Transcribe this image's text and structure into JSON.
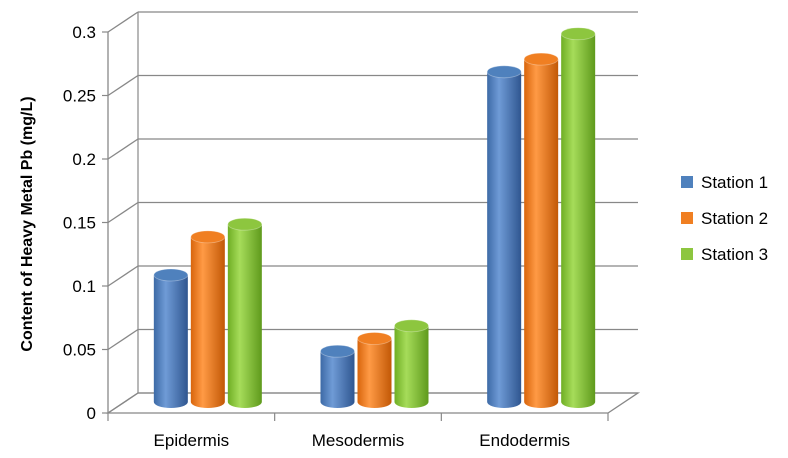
{
  "chart_data": {
    "type": "bar",
    "title": "",
    "xlabel": "",
    "ylabel": "Content of Heavy Metal Pb (mg/L)",
    "categories": [
      "Epidermis",
      "Mesodermis",
      "Endodermis"
    ],
    "series": [
      {
        "name": "Station 1",
        "values": [
          0.1,
          0.04,
          0.26
        ],
        "color": "#4f81bd"
      },
      {
        "name": "Station 2",
        "values": [
          0.13,
          0.05,
          0.27
        ],
        "color": "#f07f22"
      },
      {
        "name": "Station 3",
        "values": [
          0.14,
          0.06,
          0.29
        ],
        "color": "#8dc63f"
      }
    ],
    "ylim": [
      0,
      0.3
    ],
    "yticks": [
      "0",
      "0.05",
      "0.1",
      "0.15",
      "0.2",
      "0.25",
      "0.3"
    ],
    "grid": true,
    "legend_position": "right",
    "style": "3d-cylinder"
  }
}
